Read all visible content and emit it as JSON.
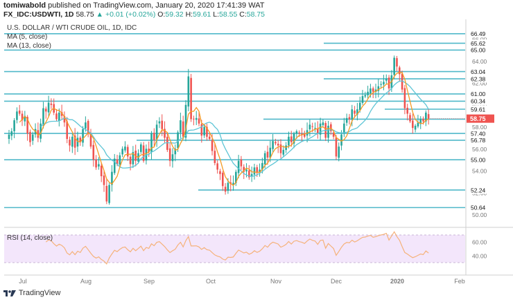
{
  "header": {
    "author": "tomiwabold",
    "published_text": " published on TradingView.com, January 20, 2020 17:41:39 WAT",
    "symbol": "FX_IDC:USDWTI, 1D",
    "last": "58.75",
    "change": "▲ +0.01 (+0.02%)",
    "o_label": "O:",
    "o_value": "59.32",
    "h_label": "H:",
    "h_value": "59.61",
    "l_label": "L:",
    "l_value": "58.55",
    "c_label": "C:",
    "c_value": "58.75"
  },
  "legend": {
    "title": "U.S. DOLLAR / WTI CRUDE OIL, 1D, IDC",
    "ma5": "MA (5, close)",
    "ma13": "MA (13, close)",
    "rsi": "RSI (14, close)"
  },
  "footer": {
    "brand": "TradingView"
  },
  "colors": {
    "up": "#26a69a",
    "down": "#ef5350",
    "ma5": "#f59a23",
    "ma13": "#5ec5d6",
    "level": "#4fb8c9",
    "rsi": "#f5b27a",
    "rsi_bg": "#f3e6fb",
    "axis": "#777777",
    "last_badge": "#ef5350"
  },
  "chart_data": [
    {
      "type": "candlestick",
      "title": "U.S. DOLLAR / WTI CRUDE OIL, 1D, IDC",
      "x_tick_labels": [
        "Jul",
        "Aug",
        "Sep",
        "Oct",
        "Nov",
        "Dec",
        "2020",
        "Feb"
      ],
      "y_tick_labels": [
        50.0,
        52.0,
        54.0,
        56.0,
        58.0,
        60.0,
        62.0,
        64.0,
        66.0
      ],
      "ylim": [
        48.9,
        67.8
      ],
      "level_labels": [
        66.49,
        65.62,
        65.0,
        63.04,
        62.38,
        61.0,
        60.34,
        59.61,
        58.7,
        57.4,
        56.78,
        55.0,
        52.24,
        50.64
      ],
      "last_price": 58.75,
      "levels": [
        {
          "value": 66.49,
          "x_from": "Jul",
          "x_to": "end"
        },
        {
          "value": 65.62,
          "x_from": "Dec",
          "x_to": "end"
        },
        {
          "value": 65.0,
          "x_from": "Jul",
          "x_to": "end"
        },
        {
          "value": 63.04,
          "x_from": "Jul",
          "x_to": "end"
        },
        {
          "value": 62.38,
          "x_from": "Dec",
          "x_to": "end"
        },
        {
          "value": 61.0,
          "x_from": "Jul",
          "x_to": "end"
        },
        {
          "value": 60.34,
          "x_from": "Jul",
          "x_to": "end"
        },
        {
          "value": 59.61,
          "x_from": "2020",
          "x_to": "end"
        },
        {
          "value": 58.7,
          "x_from": "Nov",
          "x_to": "end"
        },
        {
          "value": 57.4,
          "x_from": "Jul",
          "x_to": "end"
        },
        {
          "value": 56.78,
          "x_from": "Sep",
          "x_to": "end"
        },
        {
          "value": 55.0,
          "x_from": "Jul",
          "x_to": "end"
        },
        {
          "value": 52.24,
          "x_from": "Oct",
          "x_to": "end"
        },
        {
          "value": 50.64,
          "x_from": "Jul",
          "x_to": "end"
        }
      ],
      "series": [
        {
          "name": "MA (5, close)"
        },
        {
          "name": "MA (13, close)"
        }
      ],
      "closes": [
        57.3,
        57.6,
        58.6,
        59.4,
        59.2,
        58.6,
        59.0,
        57.4,
        56.6,
        57.3,
        57.8,
        57.0,
        58.3,
        59.7,
        59.4,
        60.2,
        60.0,
        59.3,
        58.7,
        59.3,
        59.0,
        58.4,
        56.9,
        56.3,
        57.1,
        56.1,
        57.0,
        56.6,
        57.8,
        58.4,
        57.4,
        56.2,
        55.0,
        54.3,
        54.6,
        53.5,
        52.7,
        51.2,
        52.7,
        53.9,
        55.1,
        54.6,
        55.4,
        56.0,
        56.2,
        55.3,
        54.6,
        55.7,
        54.9,
        55.6,
        56.4,
        54.9,
        56.0,
        55.7,
        57.4,
        56.8,
        58.2,
        58.5,
        57.8,
        57.0,
        55.9,
        54.9,
        55.5,
        56.0,
        57.5,
        58.6,
        57.1,
        60.0,
        62.6,
        58.7,
        58.7,
        58.8,
        58.3,
        57.2,
        58.0,
        57.1,
        56.9,
        55.8,
        54.7,
        54.1,
        53.7,
        52.6,
        52.1,
        52.9,
        52.8,
        52.9,
        53.9,
        54.9,
        54.4,
        53.9,
        54.1,
        53.4,
        53.7,
        54.3,
        53.8,
        54.1,
        54.7,
        55.6,
        55.2,
        56.1,
        56.7,
        56.5,
        56.3,
        55.6,
        55.9,
        56.3,
        57.1,
        56.6,
        57.4,
        57.6,
        57.4,
        57.3,
        57.1,
        57.7,
        58.2,
        58.0,
        57.9,
        57.4,
        58.3,
        58.4,
        57.0,
        58.1,
        57.6,
        57.1,
        55.3,
        56.2,
        57.3,
        58.3,
        58.8,
        58.7,
        59.6,
        59.2,
        59.6,
        60.2,
        60.8,
        60.9,
        61.2,
        61.5,
        61.2,
        61.4,
        61.7,
        61.9,
        62.1,
        62.4,
        61.5,
        62.7,
        64.3,
        63.5,
        62.8,
        61.4,
        59.7,
        59.2,
        58.5,
        57.9,
        58.1,
        58.4,
        58.7,
        58.5,
        59.3,
        58.75
      ]
    },
    {
      "type": "line",
      "title": "RSI (14, close)",
      "series": [
        {
          "name": "RSI (14, close)"
        }
      ],
      "y_tick_labels": [
        40.0,
        60.0
      ],
      "ylim": [
        17,
        78
      ],
      "band": [
        30,
        70
      ]
    }
  ]
}
